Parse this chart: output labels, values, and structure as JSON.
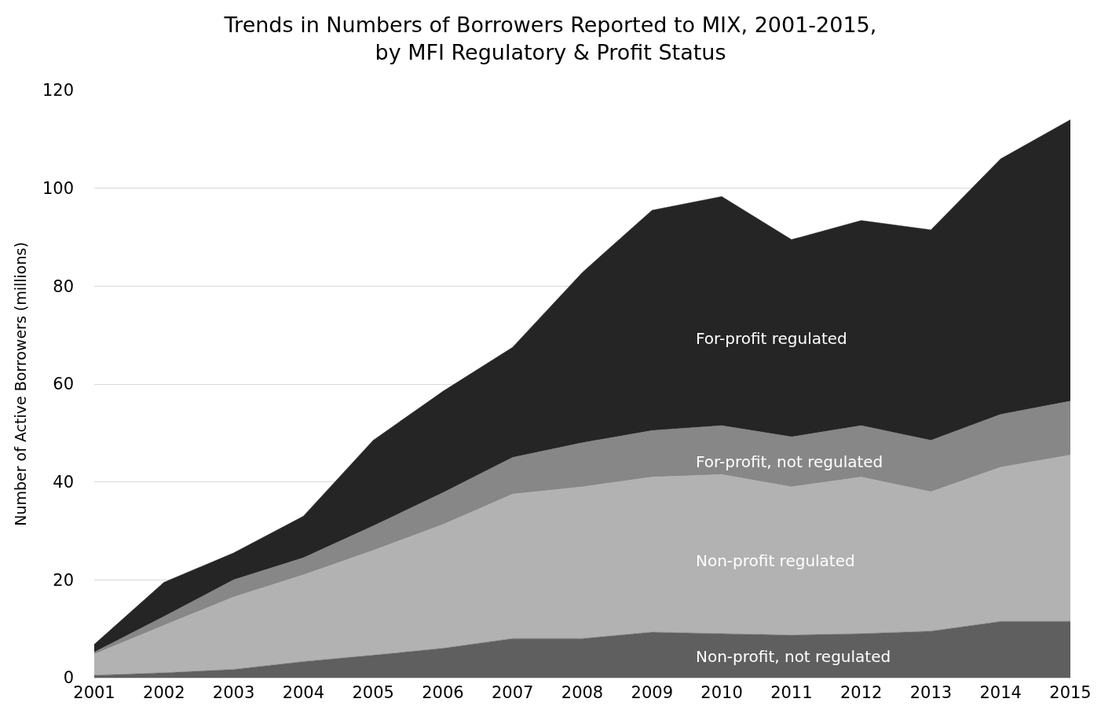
{
  "chart_data": {
    "type": "area",
    "stacked": true,
    "title": "Trends in Numbers of Borrowers Reported to MIX, 2001-2015,\nby MFI Regulatory & Profit Status",
    "ylabel": "Number of Active Borrowers (millions)",
    "x": [
      2001,
      2002,
      2003,
      2004,
      2005,
      2006,
      2007,
      2008,
      2009,
      2010,
      2011,
      2012,
      2013,
      2014,
      2015
    ],
    "series": [
      {
        "name": "Non-profit, not regulated",
        "color": "#5f5f5f",
        "values": [
          0.5,
          1,
          1.7,
          3.3,
          4.6,
          6,
          8,
          8,
          9.3,
          9,
          8.7,
          9,
          9.5,
          11.5,
          11.5
        ]
      },
      {
        "name": "Non-profit regulated",
        "color": "#b2b2b2",
        "values": [
          4.3,
          9.7,
          14.8,
          17.7,
          21.4,
          25.3,
          29.5,
          31,
          31.7,
          32.5,
          30.3,
          32,
          28.5,
          31.5,
          34
        ]
      },
      {
        "name": "For-profit, not regulated",
        "color": "#878787",
        "values": [
          0.4,
          1.8,
          3.5,
          3.5,
          5,
          6.5,
          7.5,
          9,
          9.5,
          10,
          10.2,
          10.5,
          10.5,
          10.8,
          11
        ]
      },
      {
        "name": "For-profit regulated",
        "color": "#252525",
        "values": [
          1.6,
          7,
          5.5,
          8.5,
          17.5,
          20.7,
          22.5,
          34.8,
          45,
          46.8,
          40.3,
          41.9,
          43,
          52.2,
          57.5
        ]
      }
    ],
    "xlim": [
      2001,
      2015
    ],
    "xticks": [
      2001,
      2002,
      2003,
      2004,
      2005,
      2006,
      2007,
      2008,
      2009,
      2010,
      2011,
      2012,
      2013,
      2014,
      2015
    ],
    "ylim": [
      0,
      120
    ],
    "yticks": [
      0,
      20,
      40,
      60,
      80,
      100,
      120
    ],
    "grid": "y",
    "legend": false
  }
}
